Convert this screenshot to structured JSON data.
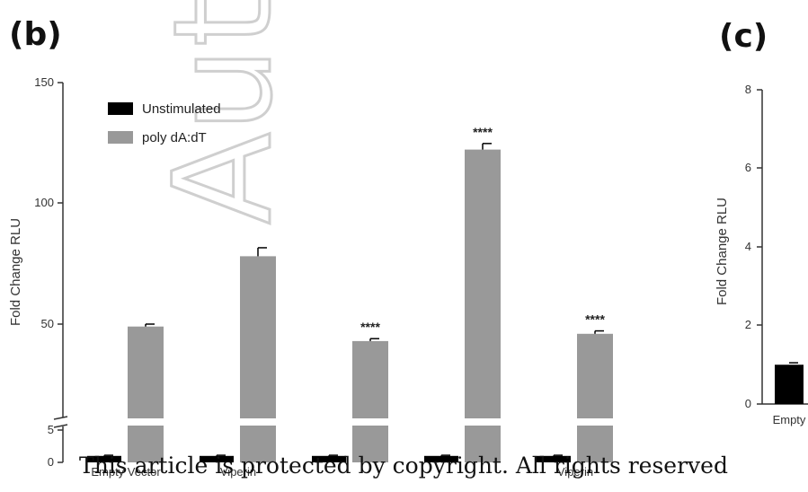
{
  "watermark": "Auth",
  "copyright": "This article is protected by copyright. All rights reserved",
  "chart_data": [
    {
      "panel": "(b)",
      "type": "bar",
      "ylabel": "Fold Change RLU",
      "ylim": [
        0,
        150
      ],
      "y_ticks": [
        "0",
        "5",
        "50",
        "100",
        "150"
      ],
      "axis_break": [
        5,
        20
      ],
      "categories": [
        "Empty Vector",
        "Viperin",
        "",
        "",
        "Viperin"
      ],
      "series": [
        {
          "name": "Unstimulated",
          "color": "#000000",
          "values": [
            1.0,
            1.0,
            1.0,
            1.0,
            1.0
          ],
          "errors": [
            0.1,
            0.1,
            0.1,
            0.1,
            0.1
          ]
        },
        {
          "name": "poly dA:dT",
          "color": "#999999",
          "values": [
            49,
            78,
            43,
            122,
            46
          ],
          "errors": [
            1.0,
            3.5,
            1.0,
            2.5,
            1.2
          ]
        }
      ],
      "annotations": [
        "",
        "",
        "****",
        "****",
        "****"
      ],
      "legend_position": "top-left"
    },
    {
      "panel": "(c)",
      "type": "bar",
      "ylabel": "Fold Change RLU",
      "ylim": [
        0,
        8
      ],
      "y_ticks": [
        "0",
        "2",
        "4",
        "6",
        "8"
      ],
      "categories": [
        "Empty"
      ],
      "series": [
        {
          "name": "Unstimulated",
          "color": "#000000",
          "values": [
            1.0
          ],
          "errors": [
            0.05
          ]
        }
      ]
    }
  ]
}
